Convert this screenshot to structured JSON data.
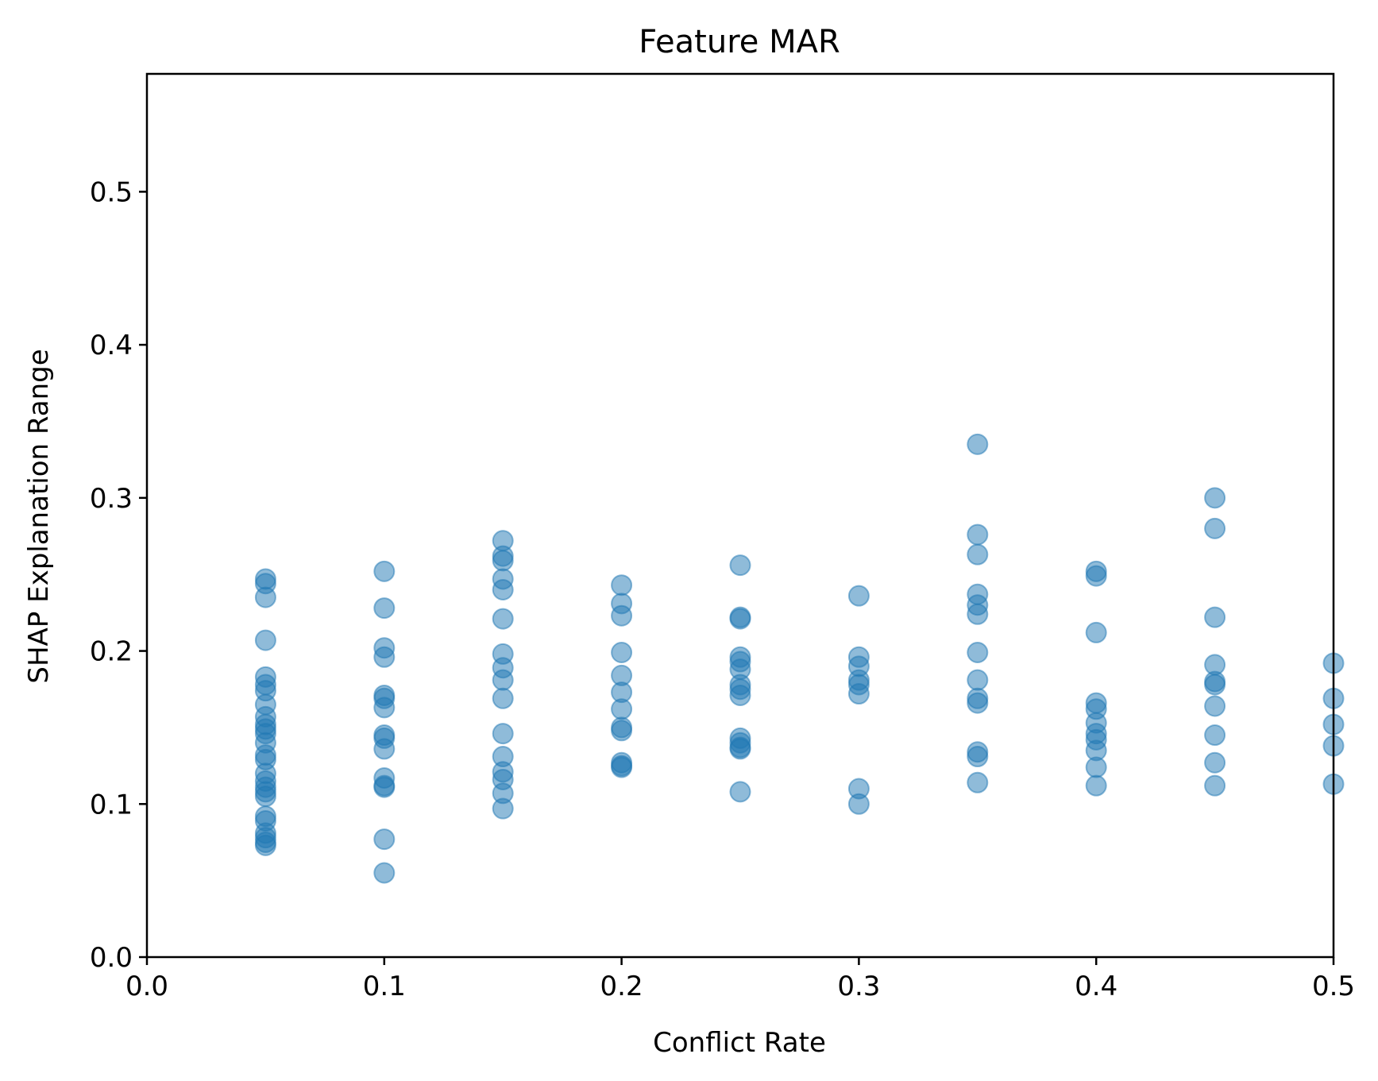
{
  "chart_data": {
    "type": "scatter",
    "title": "Feature MAR",
    "xlabel": "Conflict Rate",
    "ylabel": "SHAP Explanation Range",
    "xlim": [
      0.0,
      0.5
    ],
    "ylim": [
      0.0,
      0.577
    ],
    "xticks": [
      "0.0",
      "0.1",
      "0.2",
      "0.3",
      "0.4",
      "0.5"
    ],
    "yticks": [
      "0.0",
      "0.1",
      "0.2",
      "0.3",
      "0.4",
      "0.5"
    ],
    "grid": false,
    "marker_color": "#1f77b4",
    "marker_alpha": 0.5,
    "series": [
      {
        "points": [
          [
            0.05,
            0.247
          ],
          [
            0.05,
            0.244
          ],
          [
            0.05,
            0.235
          ],
          [
            0.05,
            0.207
          ],
          [
            0.05,
            0.183
          ],
          [
            0.05,
            0.178
          ],
          [
            0.05,
            0.174
          ],
          [
            0.05,
            0.165
          ],
          [
            0.05,
            0.157
          ],
          [
            0.05,
            0.152
          ],
          [
            0.05,
            0.149
          ],
          [
            0.05,
            0.146
          ],
          [
            0.05,
            0.14
          ],
          [
            0.05,
            0.132
          ],
          [
            0.05,
            0.129
          ],
          [
            0.05,
            0.12
          ],
          [
            0.05,
            0.115
          ],
          [
            0.05,
            0.111
          ],
          [
            0.05,
            0.108
          ],
          [
            0.05,
            0.105
          ],
          [
            0.05,
            0.092
          ],
          [
            0.05,
            0.089
          ],
          [
            0.05,
            0.081
          ],
          [
            0.05,
            0.078
          ],
          [
            0.05,
            0.075
          ],
          [
            0.05,
            0.073
          ],
          [
            0.1,
            0.252
          ],
          [
            0.1,
            0.228
          ],
          [
            0.1,
            0.202
          ],
          [
            0.1,
            0.196
          ],
          [
            0.1,
            0.171
          ],
          [
            0.1,
            0.169
          ],
          [
            0.1,
            0.163
          ],
          [
            0.1,
            0.145
          ],
          [
            0.1,
            0.143
          ],
          [
            0.1,
            0.136
          ],
          [
            0.1,
            0.117
          ],
          [
            0.1,
            0.112
          ],
          [
            0.1,
            0.111
          ],
          [
            0.1,
            0.077
          ],
          [
            0.1,
            0.055
          ],
          [
            0.15,
            0.272
          ],
          [
            0.15,
            0.262
          ],
          [
            0.15,
            0.259
          ],
          [
            0.15,
            0.247
          ],
          [
            0.15,
            0.24
          ],
          [
            0.15,
            0.221
          ],
          [
            0.15,
            0.198
          ],
          [
            0.15,
            0.189
          ],
          [
            0.15,
            0.181
          ],
          [
            0.15,
            0.169
          ],
          [
            0.15,
            0.146
          ],
          [
            0.15,
            0.131
          ],
          [
            0.15,
            0.121
          ],
          [
            0.15,
            0.116
          ],
          [
            0.15,
            0.107
          ],
          [
            0.15,
            0.097
          ],
          [
            0.2,
            0.243
          ],
          [
            0.2,
            0.231
          ],
          [
            0.2,
            0.223
          ],
          [
            0.2,
            0.199
          ],
          [
            0.2,
            0.184
          ],
          [
            0.2,
            0.173
          ],
          [
            0.2,
            0.162
          ],
          [
            0.2,
            0.15
          ],
          [
            0.2,
            0.148
          ],
          [
            0.2,
            0.127
          ],
          [
            0.2,
            0.125
          ],
          [
            0.2,
            0.124
          ],
          [
            0.25,
            0.256
          ],
          [
            0.25,
            0.222
          ],
          [
            0.25,
            0.221
          ],
          [
            0.25,
            0.196
          ],
          [
            0.25,
            0.193
          ],
          [
            0.25,
            0.188
          ],
          [
            0.25,
            0.178
          ],
          [
            0.25,
            0.175
          ],
          [
            0.25,
            0.171
          ],
          [
            0.25,
            0.143
          ],
          [
            0.25,
            0.14
          ],
          [
            0.25,
            0.137
          ],
          [
            0.25,
            0.136
          ],
          [
            0.25,
            0.108
          ],
          [
            0.3,
            0.236
          ],
          [
            0.3,
            0.196
          ],
          [
            0.3,
            0.19
          ],
          [
            0.3,
            0.181
          ],
          [
            0.3,
            0.178
          ],
          [
            0.3,
            0.172
          ],
          [
            0.3,
            0.11
          ],
          [
            0.3,
            0.1
          ],
          [
            0.35,
            0.335
          ],
          [
            0.35,
            0.276
          ],
          [
            0.35,
            0.263
          ],
          [
            0.35,
            0.237
          ],
          [
            0.35,
            0.23
          ],
          [
            0.35,
            0.224
          ],
          [
            0.35,
            0.199
          ],
          [
            0.35,
            0.181
          ],
          [
            0.35,
            0.169
          ],
          [
            0.35,
            0.166
          ],
          [
            0.35,
            0.134
          ],
          [
            0.35,
            0.131
          ],
          [
            0.35,
            0.114
          ],
          [
            0.4,
            0.252
          ],
          [
            0.4,
            0.249
          ],
          [
            0.4,
            0.212
          ],
          [
            0.4,
            0.166
          ],
          [
            0.4,
            0.162
          ],
          [
            0.4,
            0.153
          ],
          [
            0.4,
            0.146
          ],
          [
            0.4,
            0.142
          ],
          [
            0.4,
            0.135
          ],
          [
            0.4,
            0.124
          ],
          [
            0.4,
            0.112
          ],
          [
            0.45,
            0.3
          ],
          [
            0.45,
            0.28
          ],
          [
            0.45,
            0.222
          ],
          [
            0.45,
            0.191
          ],
          [
            0.45,
            0.18
          ],
          [
            0.45,
            0.178
          ],
          [
            0.45,
            0.164
          ],
          [
            0.45,
            0.145
          ],
          [
            0.45,
            0.127
          ],
          [
            0.45,
            0.112
          ],
          [
            0.5,
            0.192
          ],
          [
            0.5,
            0.169
          ],
          [
            0.5,
            0.152
          ],
          [
            0.5,
            0.138
          ],
          [
            0.5,
            0.113
          ]
        ]
      }
    ]
  }
}
